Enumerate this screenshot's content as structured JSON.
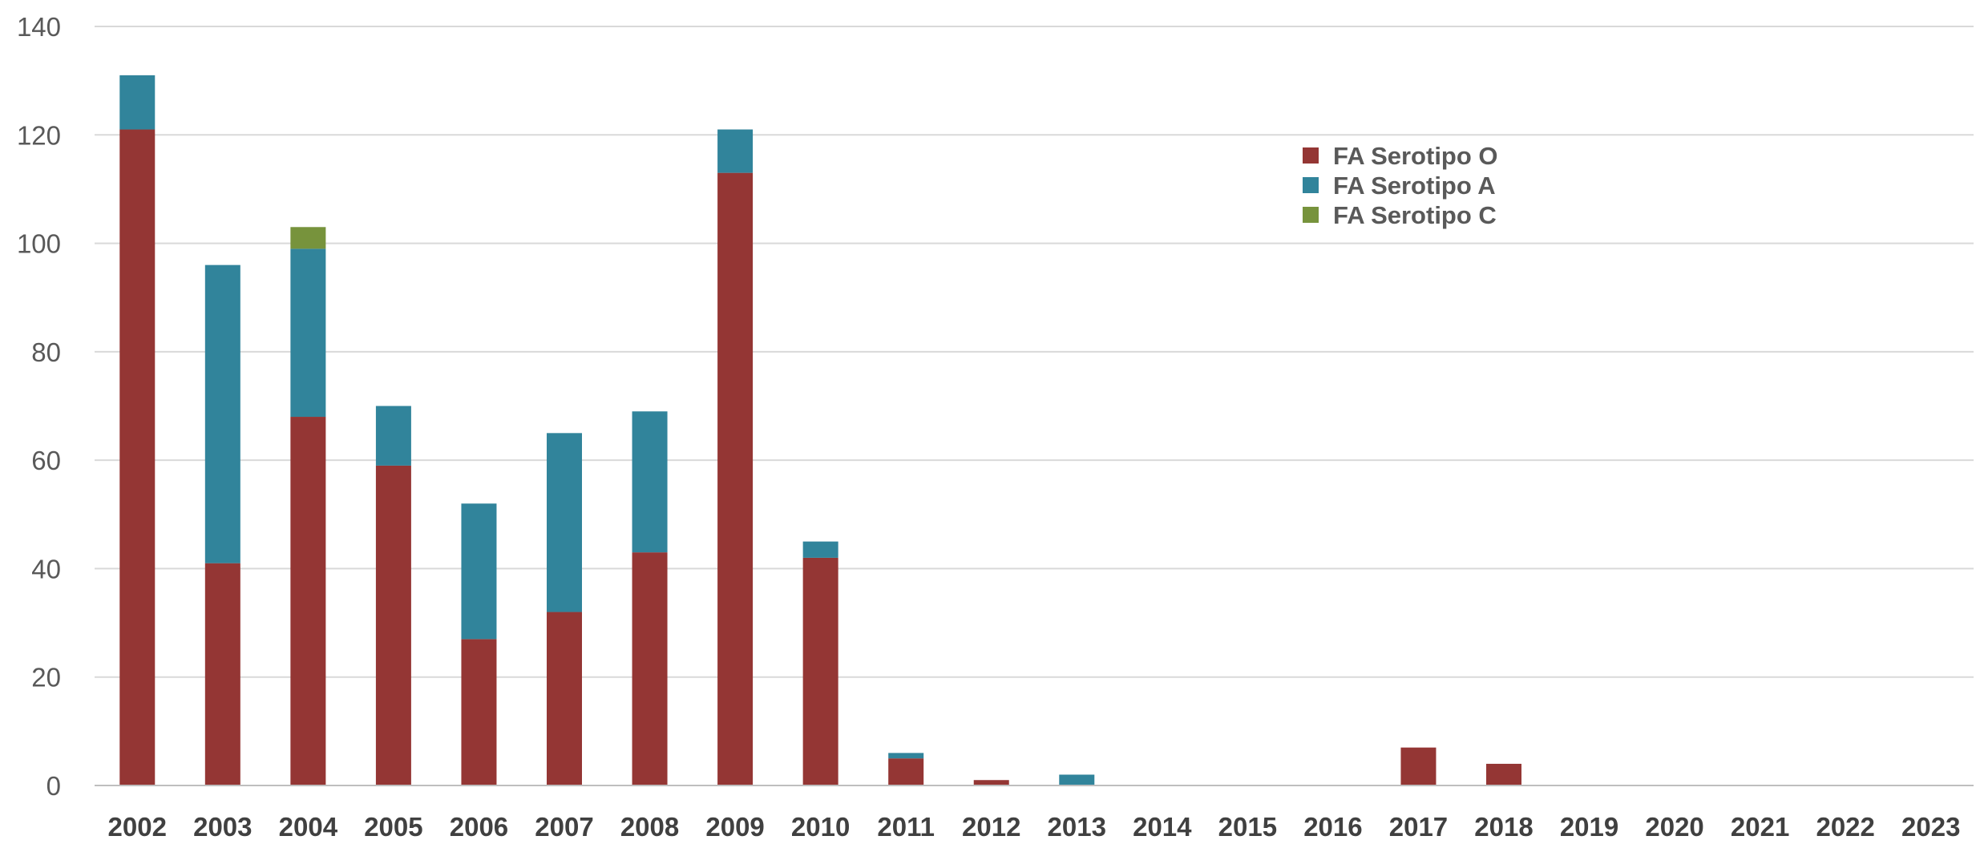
{
  "chart_data": {
    "type": "bar",
    "stacked": true,
    "categories": [
      "2002",
      "2003",
      "2004",
      "2005",
      "2006",
      "2007",
      "2008",
      "2009",
      "2010",
      "2011",
      "2012",
      "2013",
      "2014",
      "2015",
      "2016",
      "2017",
      "2018",
      "2019",
      "2020",
      "2021",
      "2022",
      "2023"
    ],
    "series": [
      {
        "name": "FA Serotipo O",
        "color": "#943634",
        "values": [
          121,
          41,
          68,
          59,
          27,
          32,
          43,
          113,
          42,
          5,
          1,
          0,
          0,
          0,
          0,
          7,
          4,
          0,
          0,
          0,
          0,
          0
        ]
      },
      {
        "name": "FA Serotipo A",
        "color": "#31849B",
        "values": [
          10,
          55,
          31,
          11,
          25,
          33,
          26,
          8,
          3,
          1,
          0,
          2,
          0,
          0,
          0,
          0,
          0,
          0,
          0,
          0,
          0,
          0
        ]
      },
      {
        "name": "FA Serotipo C",
        "color": "#77933C",
        "values": [
          0,
          0,
          4,
          0,
          0,
          0,
          0,
          0,
          0,
          0,
          0,
          0,
          0,
          0,
          0,
          0,
          0,
          0,
          0,
          0,
          0,
          0
        ]
      }
    ],
    "ylim": [
      0,
      140
    ],
    "yticks": [
      0,
      20,
      40,
      60,
      80,
      100,
      120,
      140
    ],
    "title": "",
    "xlabel": "",
    "ylabel": "",
    "grid": true,
    "legend_position": "top-right"
  }
}
